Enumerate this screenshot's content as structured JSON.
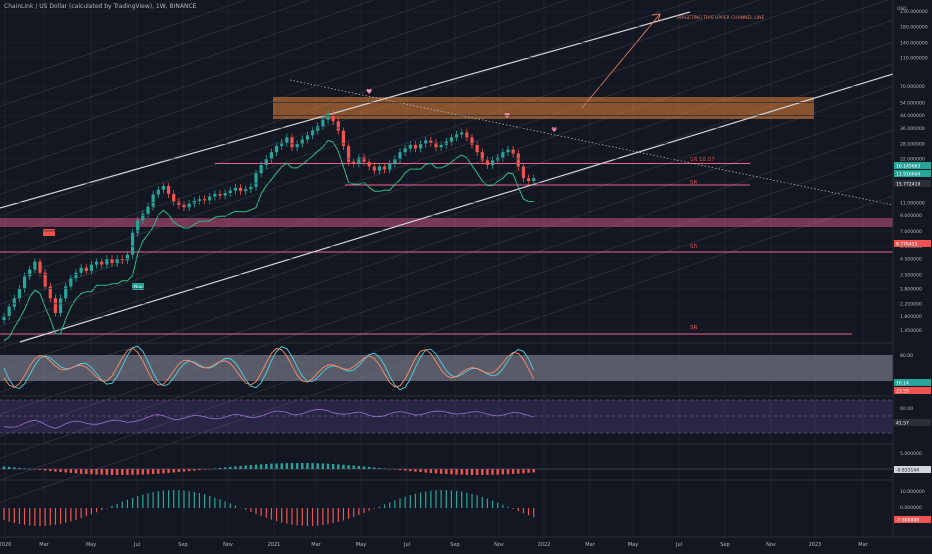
{
  "header": {
    "title": "ChainLink / US Dollar (calculated by TradingView), 1W, BINANCE"
  },
  "price_axis": {
    "currency": "USD",
    "ticks": [
      "230.000000",
      "180.000000",
      "140.000000",
      "110.000000",
      "70.000000",
      "54.000000",
      "44.000000",
      "36.000000",
      "28.000000",
      "22.000000",
      "15.000000",
      "11.000000",
      "9.000000",
      "7.000000",
      "5.500000",
      "4.500000",
      "3.500000",
      "2.800000",
      "2.200000",
      "1.800000",
      "1.450000"
    ],
    "badges": [
      "16.145663",
      "11.916604",
      "15.772419",
      "6.776455"
    ]
  },
  "time_axis": {
    "labels": [
      "2020",
      "Mar",
      "May",
      "Jul",
      "Sep",
      "Nov",
      "2021",
      "Mar",
      "May",
      "Jul",
      "Sep",
      "Nov",
      "2022",
      "Mar",
      "May",
      "Jul",
      "Sep",
      "Nov",
      "2023",
      "Mar"
    ]
  },
  "annotations": {
    "target": "TARGETING THIS UPPER CHANNEL LINE",
    "sr_lines": [
      "SR 18.87",
      "SR",
      "SR",
      "SR"
    ],
    "buy": "Buy"
  },
  "panes": {
    "stoch": {
      "levels": [
        "80.00",
        "20.00"
      ],
      "badges": [
        "16.14",
        "23.55"
      ]
    },
    "rsi": {
      "levels": [
        "60.00"
      ],
      "badges": [
        "41.57"
      ]
    },
    "macd": {
      "levels": [
        "5.000000"
      ],
      "badges": [
        "-0.833144"
      ]
    },
    "osc": {
      "levels": [
        "10.000000",
        "0.000000"
      ],
      "badges": [
        "-7.888888"
      ]
    }
  },
  "chart_data": {
    "type": "candlestick",
    "title": "ChainLink / US Dollar (calculated by TradingView), 1W, BINANCE",
    "yscale": "log",
    "ylim": [
      1.2,
      230
    ],
    "x_start": "2020-01",
    "x_end": "2023-04",
    "weekly_close": [
      1.8,
      2.1,
      2.4,
      2.8,
      3.4,
      3.8,
      4.3,
      3.6,
      2.9,
      2.4,
      1.9,
      2.4,
      2.9,
      3.3,
      3.6,
      3.9,
      3.7,
      4.1,
      4.3,
      4.1,
      4.5,
      4.2,
      4.5,
      4.4,
      4.8,
      6.8,
      8.3,
      9.2,
      10.3,
      12.5,
      13.5,
      14.3,
      12.6,
      11.2,
      10.6,
      10.2,
      10.8,
      11.3,
      11.6,
      11.4,
      12.1,
      12.6,
      12.3,
      12.8,
      13.3,
      13.9,
      13.2,
      13.6,
      14.1,
      17.5,
      20.0,
      22.0,
      24.5,
      27.0,
      28.5,
      31.0,
      26.5,
      28.0,
      30.0,
      32.0,
      34.5,
      37.0,
      41.0,
      45.0,
      40.0,
      34.5,
      27.0,
      21.0,
      20.5,
      22.5,
      21.0,
      19.5,
      18.3,
      19.5,
      18.6,
      20.4,
      21.9,
      24.5,
      26.0,
      27.5,
      26.0,
      28.0,
      29.5,
      28.5,
      26.5,
      27.5,
      29.0,
      31.0,
      32.5,
      33.5,
      31.0,
      27.5,
      24.5,
      21.5,
      20.0,
      21.5,
      22.5,
      24.5,
      25.5,
      24.0,
      19.5,
      16.2,
      15.5,
      16.2
    ]
  }
}
